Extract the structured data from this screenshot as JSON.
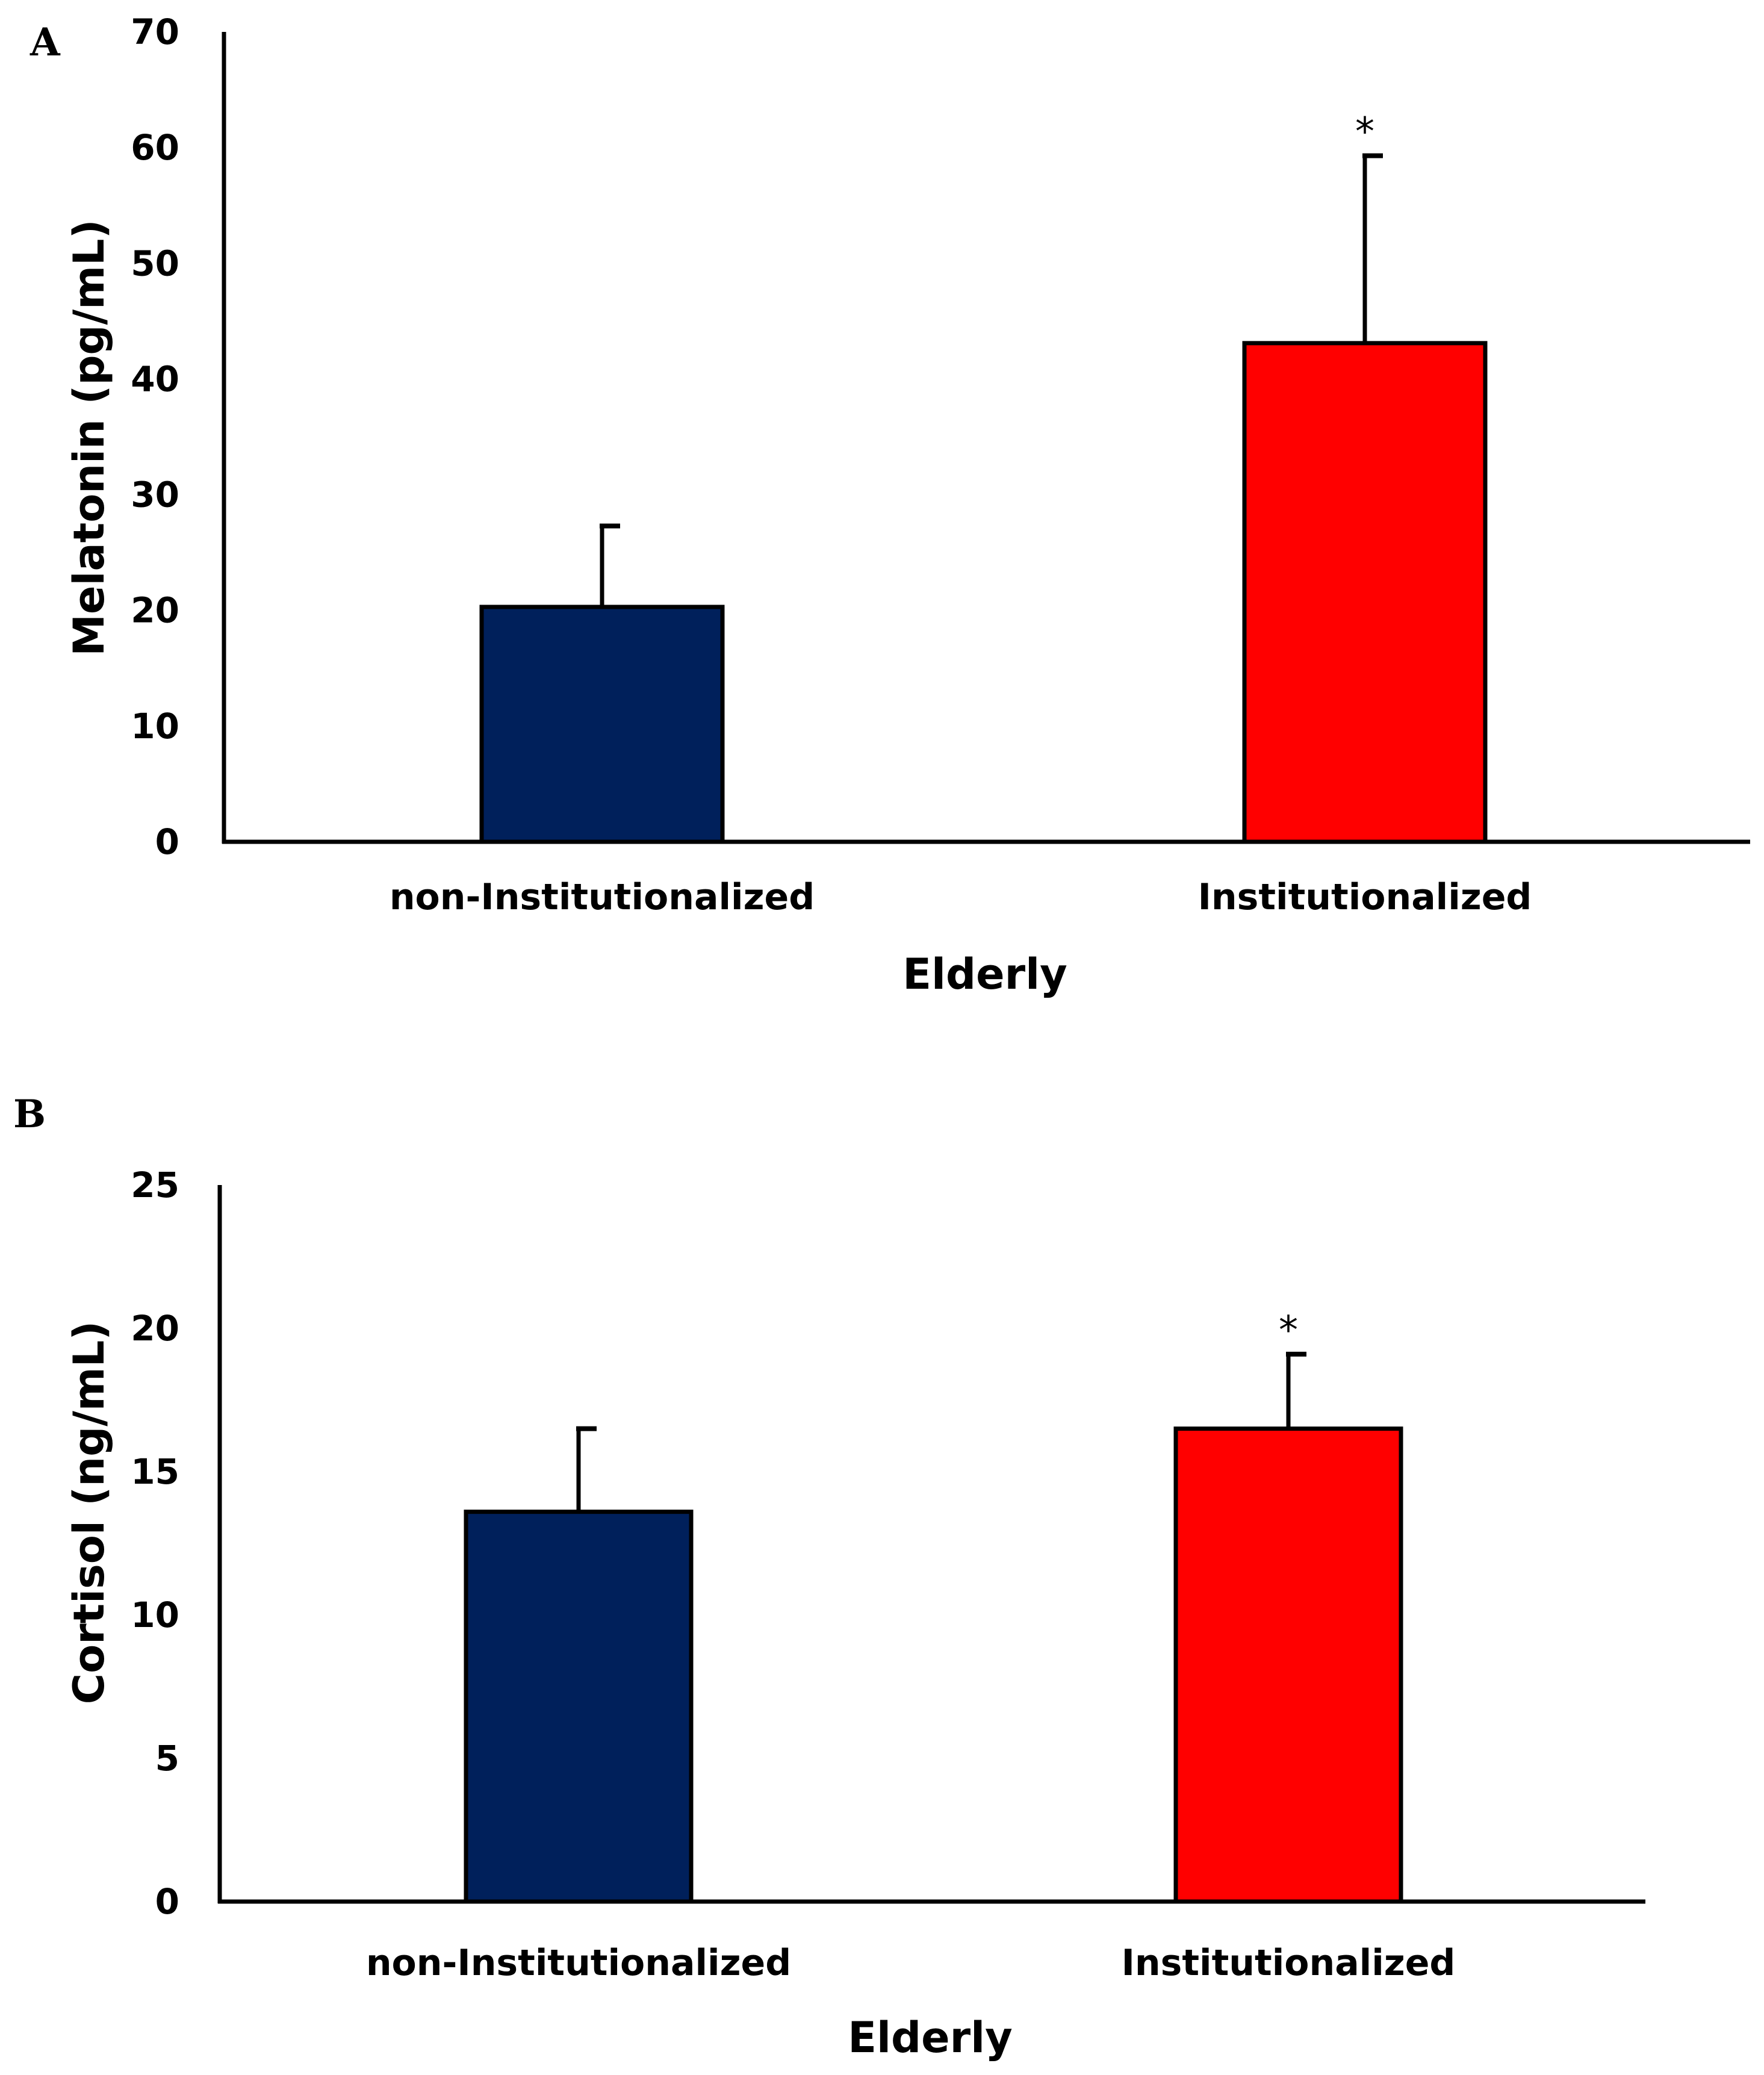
{
  "chart_data": [
    {
      "type": "bar",
      "panel": "A",
      "categories": [
        "non-Institutionalized",
        "Institutionalized"
      ],
      "values": [
        20.3,
        43.1
      ],
      "error": [
        7.0,
        16.2
      ],
      "significance": [
        "",
        "*"
      ],
      "colors": [
        "#00205B",
        "#FF0000"
      ],
      "title": "",
      "xlabel": "Elderly",
      "ylabel": "Melatonin (pg/mL)",
      "ylim": [
        0,
        70
      ],
      "yticks": [
        0,
        10,
        20,
        30,
        40,
        50,
        60,
        70
      ],
      "grid": false
    },
    {
      "type": "bar",
      "panel": "B",
      "categories": [
        "non-Institutionalized",
        "Institutionalized"
      ],
      "values": [
        13.6,
        16.5
      ],
      "error": [
        2.9,
        2.6
      ],
      "significance": [
        "",
        "*"
      ],
      "colors": [
        "#00205B",
        "#FF0000"
      ],
      "title": "",
      "xlabel": "Elderly",
      "ylabel": "Cortisol (ng/mL)",
      "ylim": [
        0,
        25
      ],
      "yticks": [
        0,
        5,
        10,
        15,
        20,
        25
      ],
      "grid": false
    }
  ]
}
